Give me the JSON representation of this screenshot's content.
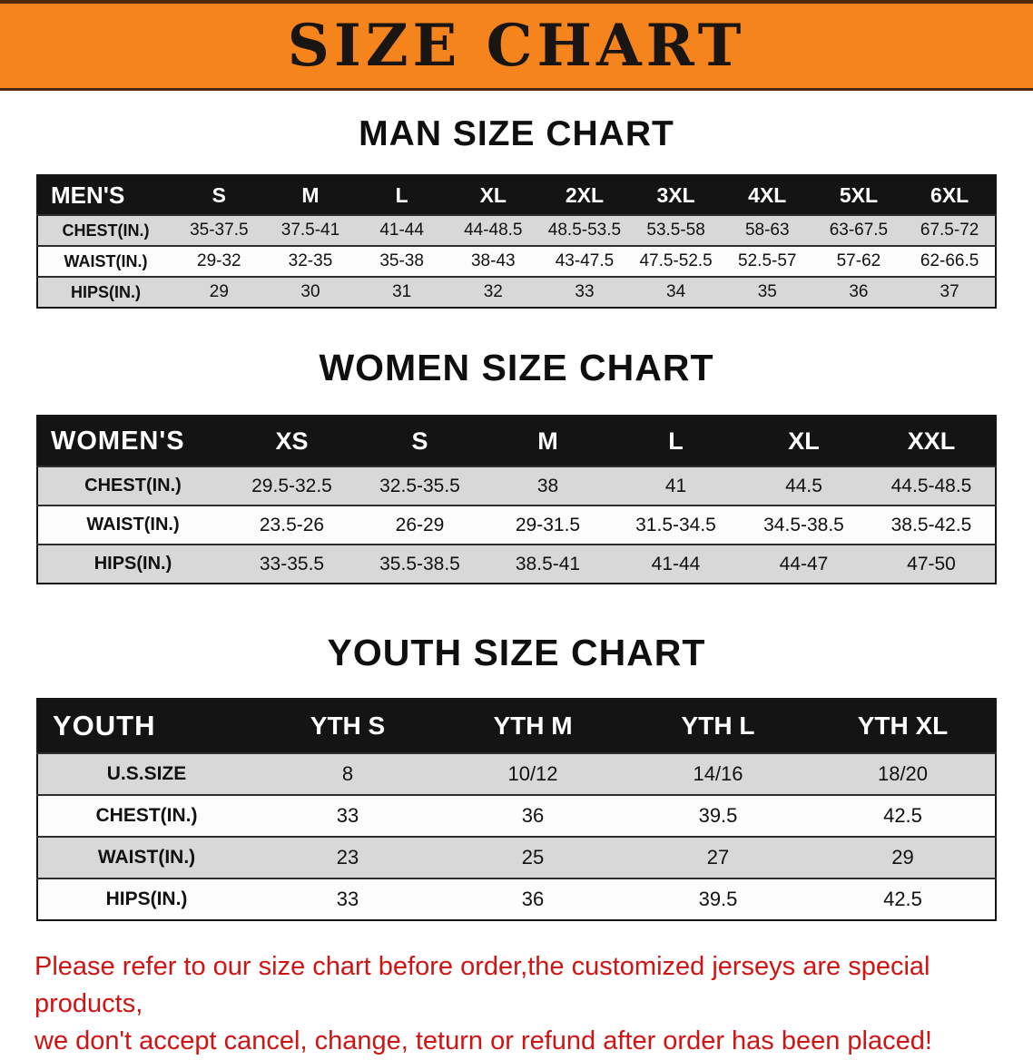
{
  "banner": {
    "title": "SIZE CHART",
    "bg_color": "#f6841d"
  },
  "sections": {
    "men": {
      "heading": "MAN SIZE CHART",
      "table": {
        "header": [
          "MEN'S",
          "S",
          "M",
          "L",
          "XL",
          "2XL",
          "3XL",
          "4XL",
          "5XL",
          "6XL"
        ],
        "rows": [
          [
            "CHEST(IN.)",
            "35-37.5",
            "37.5-41",
            "41-44",
            "44-48.5",
            "48.5-53.5",
            "53.5-58",
            "58-63",
            "63-67.5",
            "67.5-72"
          ],
          [
            "WAIST(IN.)",
            "29-32",
            "32-35",
            "35-38",
            "38-43",
            "43-47.5",
            "47.5-52.5",
            "52.5-57",
            "57-62",
            "62-66.5"
          ],
          [
            "HIPS(IN.)",
            "29",
            "30",
            "31",
            "32",
            "33",
            "34",
            "35",
            "36",
            "37"
          ]
        ]
      }
    },
    "women": {
      "heading": "WOMEN SIZE CHART",
      "table": {
        "header": [
          "WOMEN'S",
          "XS",
          "S",
          "M",
          "L",
          "XL",
          "XXL"
        ],
        "rows": [
          [
            "CHEST(IN.)",
            "29.5-32.5",
            "32.5-35.5",
            "38",
            "41",
            "44.5",
            "44.5-48.5"
          ],
          [
            "WAIST(IN.)",
            "23.5-26",
            "26-29",
            "29-31.5",
            "31.5-34.5",
            "34.5-38.5",
            "38.5-42.5"
          ],
          [
            "HIPS(IN.)",
            "33-35.5",
            "35.5-38.5",
            "38.5-41",
            "41-44",
            "44-47",
            "47-50"
          ]
        ]
      }
    },
    "youth": {
      "heading": "YOUTH SIZE CHART",
      "table": {
        "header": [
          "YOUTH",
          "YTH S",
          "YTH M",
          "YTH L",
          "YTH XL"
        ],
        "rows": [
          [
            "U.S.SIZE",
            "8",
            "10/12",
            "14/16",
            "18/20"
          ],
          [
            "CHEST(IN.)",
            "33",
            "36",
            "39.5",
            "42.5"
          ],
          [
            "WAIST(IN.)",
            "23",
            "25",
            "27",
            "29"
          ],
          [
            "HIPS(IN.)",
            "33",
            "36",
            "39.5",
            "42.5"
          ]
        ]
      }
    }
  },
  "footer": {
    "text_color": "#d01414",
    "lines": [
      "Please refer to our size chart before order,the customized jerseys are special products,",
      "we don't accept cancel, change, teturn or refund after order has been placed!"
    ]
  }
}
